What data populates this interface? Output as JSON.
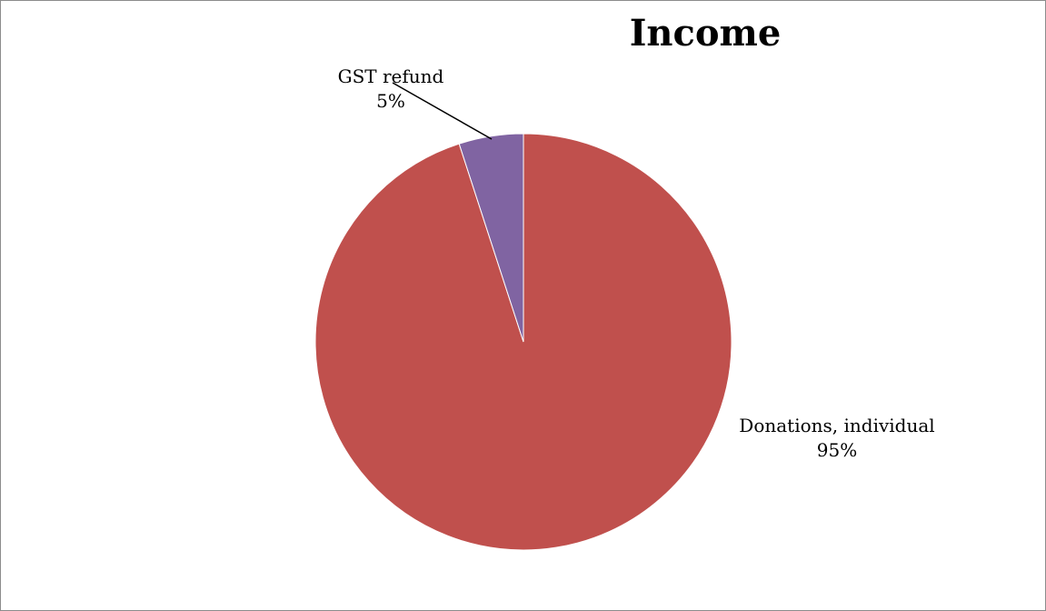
{
  "chart_data": {
    "type": "pie",
    "title": "Income",
    "slices": [
      {
        "label": "Donations, individual",
        "value": 95,
        "value_label": "95%",
        "color": "#c0504d"
      },
      {
        "label": "GST refund",
        "value": 5,
        "value_label": "5%",
        "color": "#8064a2"
      }
    ],
    "start_angle": "12 o'clock",
    "direction": "clockwise",
    "legend": "none",
    "label_style": "category name and percentage",
    "leader_line": true
  }
}
